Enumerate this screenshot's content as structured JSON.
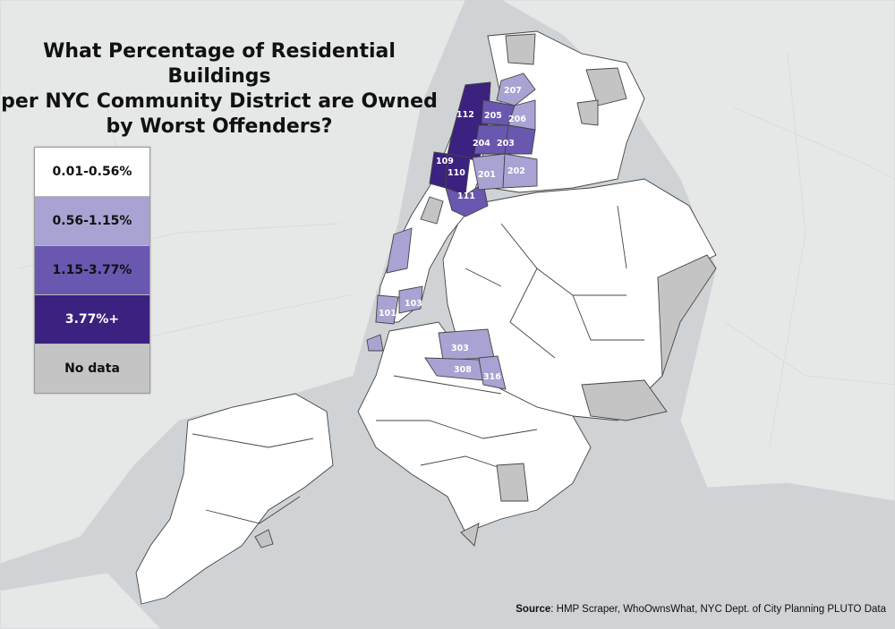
{
  "title": {
    "line1": "What Percentage of Residential Buildings",
    "line2": "per NYC Community District are Owned",
    "line3": "by Worst Offenders?"
  },
  "legend": [
    {
      "label": "0.01-0.56%",
      "color": "#ffffff"
    },
    {
      "label": "0.56-1.15%",
      "color": "#a9a3d3"
    },
    {
      "label": "1.15-3.77%",
      "color": "#6a57b0"
    },
    {
      "label": "3.77%+",
      "color": "#3b2180"
    },
    {
      "label": "No data",
      "color": "#c4c4c4"
    }
  ],
  "districts": [
    {
      "id": "112",
      "level": 3
    },
    {
      "id": "109",
      "level": 3
    },
    {
      "id": "110",
      "level": 3
    },
    {
      "id": "111",
      "level": 2
    },
    {
      "id": "101",
      "level": 1
    },
    {
      "id": "103",
      "level": 1
    },
    {
      "id": "207",
      "level": 1
    },
    {
      "id": "205",
      "level": 2
    },
    {
      "id": "206",
      "level": 1
    },
    {
      "id": "204",
      "level": 2
    },
    {
      "id": "203",
      "level": 2
    },
    {
      "id": "201",
      "level": 1
    },
    {
      "id": "202",
      "level": 1
    },
    {
      "id": "303",
      "level": 1
    },
    {
      "id": "308",
      "level": 1
    },
    {
      "id": "316",
      "level": 1
    }
  ],
  "source": {
    "label": "Source",
    "text": ": HMP Scraper, WhoOwnsWhat, NYC Dept. of City Planning PLUTO Data"
  }
}
